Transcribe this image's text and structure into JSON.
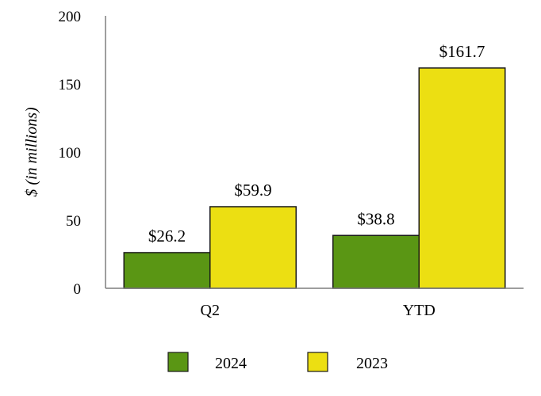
{
  "chart_data": {
    "type": "bar",
    "categories": [
      "Q2",
      "YTD"
    ],
    "series": [
      {
        "name": "2024",
        "values": [
          26.2,
          38.8
        ],
        "labels": [
          "$26.2",
          "$38.8"
        ],
        "color": "#5a9614"
      },
      {
        "name": "2023",
        "values": [
          59.9,
          161.7
        ],
        "labels": [
          "$59.9",
          "$161.7"
        ],
        "color": "#ecdf12"
      }
    ],
    "ylabel": "$ (in millions)",
    "xlabel": "",
    "ylim": [
      0,
      200
    ],
    "yticks": [
      0,
      50,
      100,
      150,
      200
    ],
    "ytick_labels": [
      "0",
      "50",
      "100",
      "150",
      "200"
    ],
    "grid": false,
    "legend_position": "bottom"
  }
}
